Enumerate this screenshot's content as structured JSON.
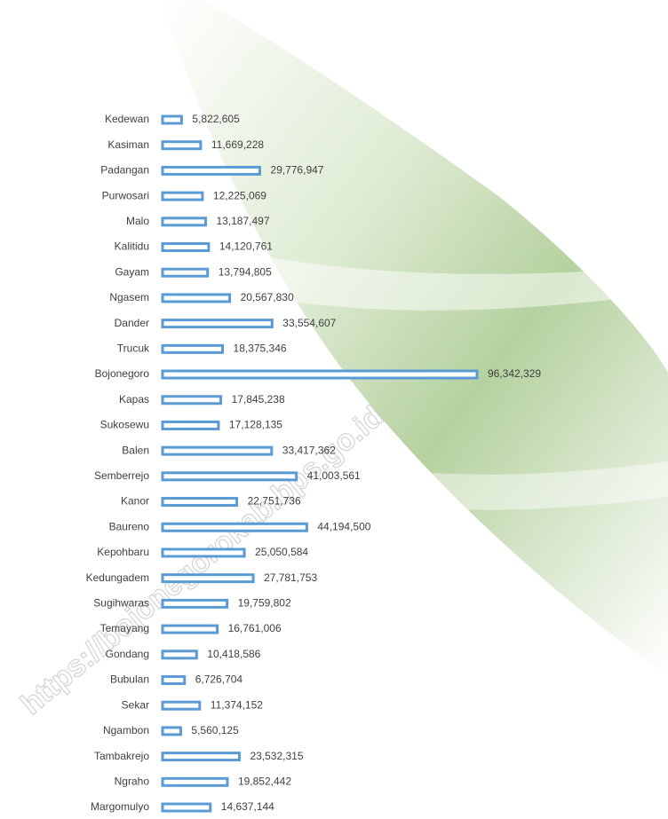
{
  "chart_data": {
    "type": "bar",
    "orientation": "horizontal",
    "categories": [
      "Kedewan",
      "Kasiman",
      "Padangan",
      "Purwosari",
      "Malo",
      "Kalitidu",
      "Gayam",
      "Ngasem",
      "Dander",
      "Trucuk",
      "Bojonegoro",
      "Kapas",
      "Sukosewu",
      "Balen",
      "Semberrejo",
      "Kanor",
      "Baureno",
      "Kepohbaru",
      "Kedungadem",
      "Sugihwaras",
      "Temayang",
      "Gondang",
      "Bubulan",
      "Sekar",
      "Ngambon",
      "Tambakrejo",
      "Ngraho",
      "Margomulyo"
    ],
    "values": [
      5822605,
      11669228,
      29776947,
      12225069,
      13187497,
      14120761,
      13794805,
      20567830,
      33554607,
      18375346,
      96342329,
      17845238,
      17128135,
      33417362,
      41003561,
      22751736,
      44194500,
      25050584,
      27781753,
      19759802,
      16761006,
      10418586,
      6726704,
      11374152,
      5560125,
      23532315,
      19852442,
      14637144
    ],
    "value_labels": [
      "5,822,605",
      "11,669,228",
      "29,776,947",
      "12,225,069",
      "13,187,497",
      "14,120,761",
      "13,794,805",
      "20,567,830",
      "33,554,607",
      "18,375,346",
      "96,342,329",
      "17,845,238",
      "17,128,135",
      "33,417,362",
      "41,003,561",
      "22,751,736",
      "44,194,500",
      "25,050,584",
      "27,781,753",
      "19,759,802",
      "16,761,006",
      "10,418,586",
      "6,726,704",
      "11,374,152",
      "5,560,125",
      "23,532,315",
      "19,852,442",
      "14,637,144"
    ],
    "color": "#5b9bd5",
    "watermark": "https://bojonegorokab.bps.go.id"
  }
}
